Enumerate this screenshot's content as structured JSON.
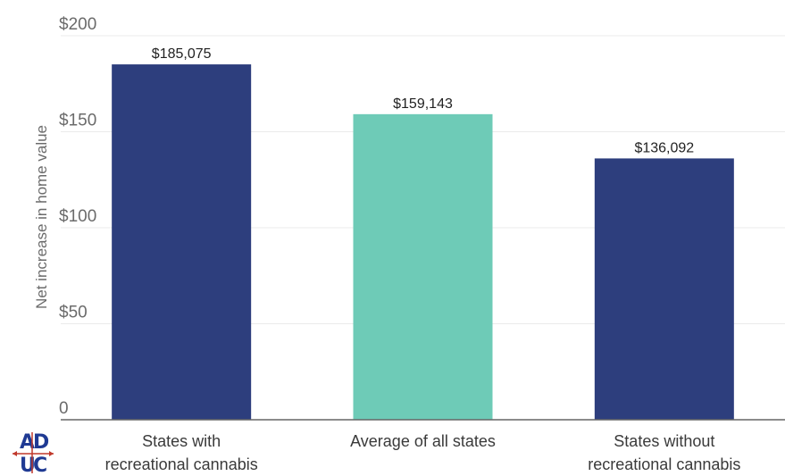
{
  "chart_data": {
    "type": "bar",
    "categories": [
      [
        "States with",
        "recreational cannabis"
      ],
      [
        "Average of all states"
      ],
      [
        "States without",
        "recreational cannabis"
      ]
    ],
    "values": [
      185.075,
      159.143,
      136.092
    ],
    "data_labels": [
      "$185,075",
      "$159,143",
      "$136,092"
    ],
    "bar_colors": [
      "#2d3e7d",
      "#6ecbb7",
      "#2d3e7d"
    ],
    "ylabel": "Net increase in home value",
    "ylim": [
      0,
      200
    ],
    "yticks": [
      0,
      50,
      100,
      150,
      200
    ],
    "ytick_labels": [
      "0",
      "$50",
      "$100",
      "$150",
      "$200"
    ],
    "grid": true
  },
  "logo": {
    "text": "ADUC",
    "colors": [
      "#1f3a93",
      "#c0392b"
    ]
  }
}
